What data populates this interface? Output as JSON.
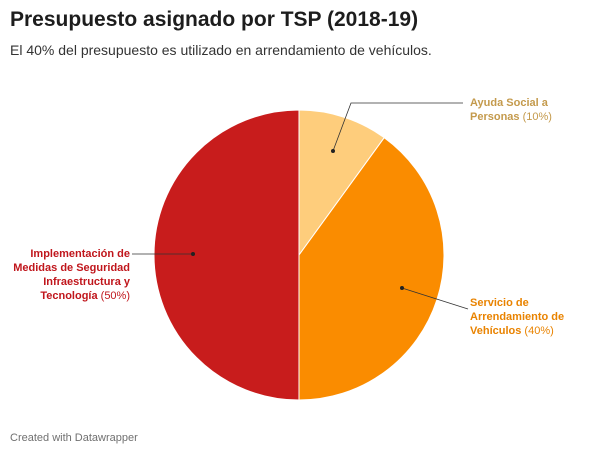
{
  "header": {
    "title": "Presupuesto asignado por TSP (2018-19)",
    "subtitle": "El 40% del presupuesto es utilizado en arrendamiento de vehículos."
  },
  "footer": {
    "credit": "Created with Datawrapper"
  },
  "chart_data": {
    "type": "pie",
    "title": "Presupuesto asignado por TSP (2018-19)",
    "subtitle": "El 40% del presupuesto es utilizado en arrendamiento de vehículos.",
    "slices": [
      {
        "label_lines": [
          "Ayuda Social a",
          "Personas"
        ],
        "pct_text": "(10%)",
        "value": 10,
        "color": "#fecd7c",
        "label_color": "#c49a4c"
      },
      {
        "label_lines": [
          "Servicio de",
          "Arrendamiento de",
          "Vehículos"
        ],
        "pct_text": "(40%)",
        "value": 40,
        "color": "#fa8c00",
        "label_color": "#e98300"
      },
      {
        "label_lines": [
          "Implementación de",
          "Medidas de Seguridad",
          "Infraestructura y",
          "Tecnología"
        ],
        "pct_text": "(50%)",
        "value": 50,
        "color": "#c81c1c",
        "label_color": "#c0161c"
      }
    ]
  }
}
